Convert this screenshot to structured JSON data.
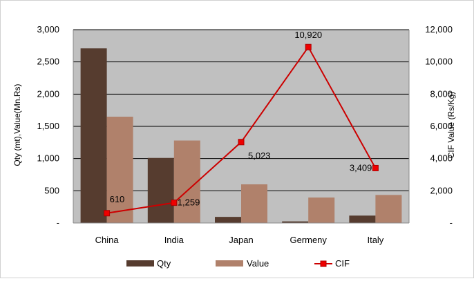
{
  "chart_data": {
    "type": "bar",
    "categories": [
      "China",
      "India",
      "Japan",
      "Germeny",
      "Italy"
    ],
    "series": [
      {
        "name": "Qty",
        "type": "bar",
        "axis": "left",
        "color": "#563C2F",
        "values": [
          2710,
          1010,
          95,
          25,
          115
        ]
      },
      {
        "name": "Value",
        "type": "bar",
        "axis": "left",
        "color": "#B0816B",
        "values": [
          1650,
          1280,
          600,
          395,
          435
        ]
      },
      {
        "name": "CIF",
        "type": "line",
        "axis": "right",
        "color": "#CC0000",
        "marker": "square",
        "values": [
          610,
          1259,
          5023,
          10920,
          3409
        ]
      }
    ],
    "data_labels": [
      "610",
      "1,259",
      "5,023",
      "10,920",
      "3,409"
    ],
    "ylabel": "Qty (mt),Value(Mn.Rs)",
    "y2label": "CIF Value (Rs/Kg)",
    "ylim": [
      0,
      3000
    ],
    "y2lim": [
      0,
      12000
    ],
    "yticks": [
      "-",
      "500",
      "1,000",
      "1,500",
      "2,000",
      "2,500",
      "3,000"
    ],
    "y2ticks": [
      "-",
      "2,000",
      "4,000",
      "6,000",
      "8,000",
      "10,000",
      "12,000"
    ],
    "plot_background": "#C0C0C0",
    "grid": true,
    "legend_position": "bottom"
  }
}
